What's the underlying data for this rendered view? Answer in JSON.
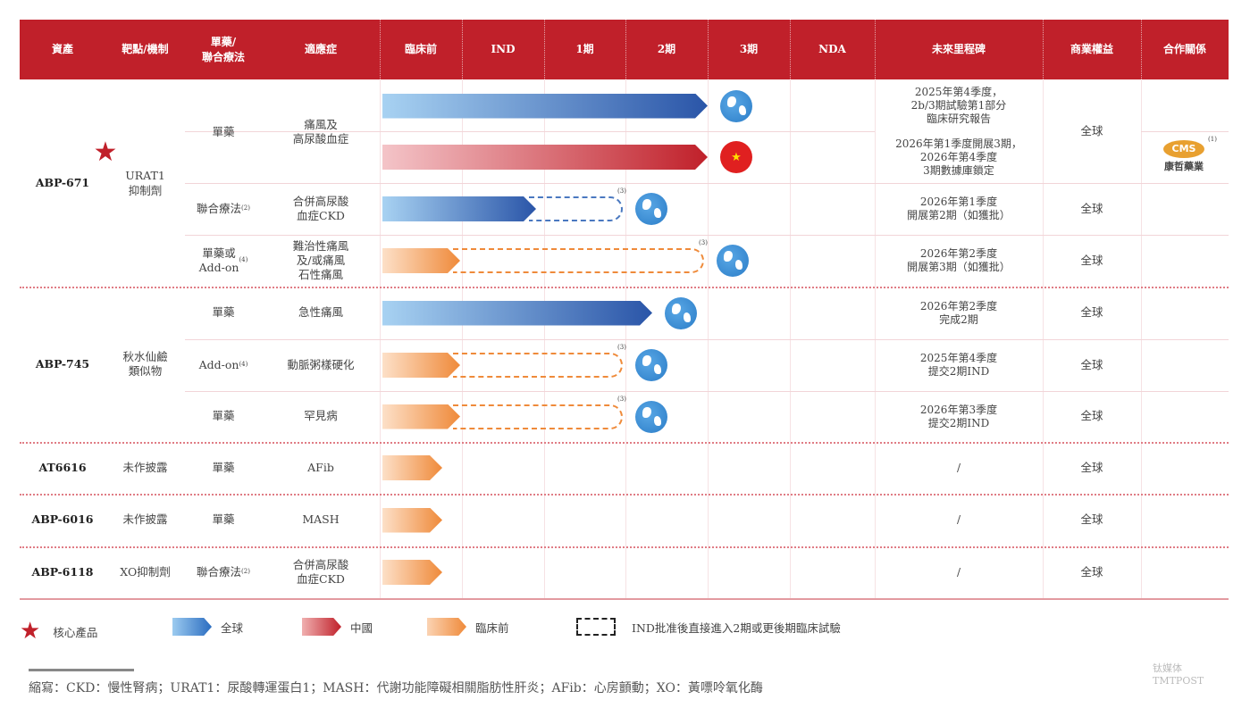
{
  "header": {
    "columns": [
      "資產",
      "靶點/機制",
      "單藥/\n聯合療法",
      "適應症",
      "臨床前",
      "IND",
      "1期",
      "2期",
      "3期",
      "NDA",
      "未來里程碑",
      "商業權益",
      "合作關係"
    ]
  },
  "colors": {
    "header_bg": "#c0202a",
    "global": "#2a55a8",
    "china": "#c0202a",
    "preclinical": "#ef8a3a",
    "core_star": "#c0202a"
  },
  "assets": [
    {
      "name": "ABP-671",
      "target": "URAT1\n抑制劑",
      "core": true
    },
    {
      "name": "ABP-745",
      "target": "秋水仙鹼\n類似物"
    },
    {
      "name": "AT6616",
      "target": "未作披露"
    },
    {
      "name": "ABP-6016",
      "target": "未作披露"
    },
    {
      "name": "ABP-6118",
      "target": "XO抑制劑"
    }
  ],
  "programs": [
    {
      "therapy": "單藥",
      "indication": "痛風及\n高尿酸血症",
      "type": "global",
      "solid_to": "3期",
      "region_icon": "globe-icon",
      "milestone": "2025年第4季度，\n2b/3期試驗第1部分\n臨床研究報告"
    },
    {
      "type": "china",
      "solid_to": "3期",
      "region_icon": "china-flag-icon",
      "milestone": "2026年第1季度開展3期，\n2026年第4季度\n3期數據庫鎖定"
    },
    {
      "therapy": "聯合療法",
      "therapy_note": "(2)",
      "indication": "合併高尿酸\n血症CKD",
      "type": "global",
      "solid_to": "IND_mid",
      "dashed_to": "1期",
      "dashed_note": "(3)",
      "region_icon": "globe-icon",
      "milestone": "2026年第1季度\n開展第2期（如獲批）",
      "rights": "全球"
    },
    {
      "therapy": "單藥或\nAdd-on",
      "therapy_note": "(4)",
      "indication": "難治性痛風\n及/或痛風\n石性痛風",
      "type": "preclinical",
      "solid_to": "臨床前",
      "dashed_to": "2期",
      "dashed_note": "(3)",
      "region_icon": "globe-icon",
      "milestone": "2026年第2季度\n開展第3期（如獲批）",
      "rights": "全球"
    },
    {
      "therapy": "單藥",
      "indication": "急性痛風",
      "type": "global",
      "solid_to": "2期_mid",
      "region_icon": "globe-icon",
      "milestone": "2026年第2季度\n完成2期",
      "rights": "全球"
    },
    {
      "therapy": "Add-on",
      "therapy_note": "(4)",
      "indication": "動脈粥樣硬化",
      "type": "preclinical",
      "solid_to": "臨床前",
      "dashed_to": "1期",
      "dashed_note": "(3)",
      "region_icon": "globe-icon",
      "milestone": "2025年第4季度\n提交2期IND",
      "rights": "全球"
    },
    {
      "therapy": "單藥",
      "indication": "罕見病",
      "type": "preclinical",
      "solid_to": "臨床前",
      "dashed_to": "1期",
      "dashed_note": "(3)",
      "region_icon": "globe-icon",
      "milestone": "2026年第3季度\n提交2期IND",
      "rights": "全球"
    },
    {
      "therapy": "單藥",
      "indication": "AFib",
      "type": "preclinical",
      "solid_to": "臨床前_short",
      "milestone": "/",
      "rights": "全球"
    },
    {
      "therapy": "單藥",
      "indication": "MASH",
      "type": "preclinical",
      "solid_to": "臨床前_short",
      "milestone": "/",
      "rights": "全球"
    },
    {
      "therapy": "聯合療法",
      "therapy_note": "(2)",
      "indication": "合併高尿酸\n血症CKD",
      "type": "preclinical",
      "solid_to": "臨床前_short",
      "milestone": "/",
      "rights": "全球"
    }
  ],
  "abp671_rights": "全球",
  "partner": {
    "logo_text": "CMS",
    "name": "康哲藥業",
    "note": "(1)"
  },
  "legend": {
    "core": "核心產品",
    "global": "全球",
    "china": "中國",
    "preclinical": "臨床前",
    "dashed": "IND批准後直接進入2期或更後期臨床試驗"
  },
  "footnote": "縮寫：CKD：慢性腎病；URAT1：尿酸轉運蛋白1；MASH：代謝功能障礙相關脂肪性肝炎；AFib：心房顫動；XO：黃嘌呤氧化酶",
  "watermark": "钛媒体 TMTPOST"
}
